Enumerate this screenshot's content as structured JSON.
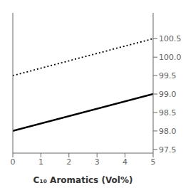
{
  "chart_data": {
    "type": "line",
    "xlabel": "C₁₀ Aromatics (Vol%)",
    "x": [
      0,
      5
    ],
    "series": [
      {
        "color": "#000000",
        "line_style": "solid",
        "values": [
          98.0,
          99.0
        ]
      },
      {
        "color": "#000000",
        "line_style": "dotted",
        "values": [
          99.5,
          100.5
        ]
      }
    ],
    "xlim": [
      0,
      5
    ],
    "xticks": [
      0,
      1,
      2,
      3,
      4,
      5
    ],
    "ylim": [
      97.4,
      101.2
    ],
    "yticks": [
      97.5,
      {
        "value": 98.0,
        "label": "98.0"
      },
      98.5,
      {
        "value": 99.0,
        "label": "99.0"
      },
      99.5,
      {
        "value": 100.0,
        "label": "100.0"
      },
      100.5
    ],
    "grid": false
  }
}
